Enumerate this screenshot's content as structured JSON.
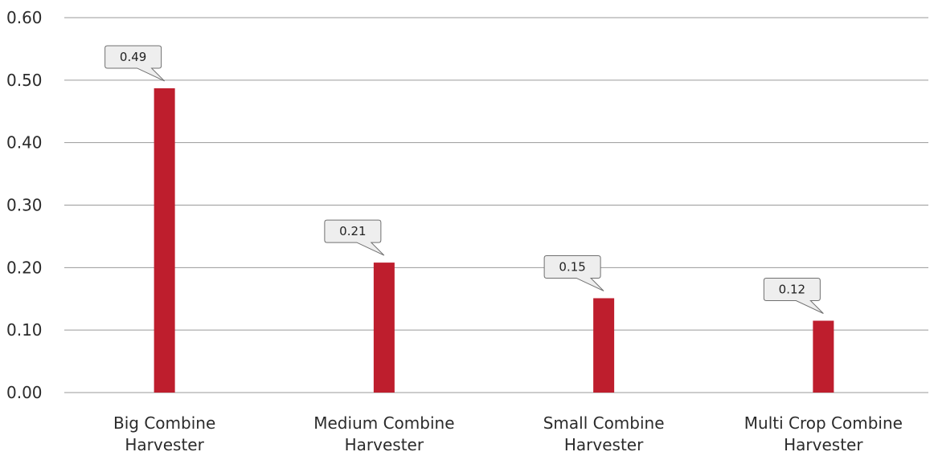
{
  "chart_data": {
    "type": "bar",
    "categories": [
      [
        "Big Combine",
        "Harvester"
      ],
      [
        "Medium Combine",
        "Harvester"
      ],
      [
        "Small Combine",
        "Harvester"
      ],
      [
        "Multi Crop Combine",
        "Harvester"
      ]
    ],
    "values": [
      0.487,
      0.208,
      0.151,
      0.115
    ],
    "data_labels": [
      "0.49",
      "0.21",
      "0.15",
      "0.12"
    ],
    "y_ticks": [
      "0.00",
      "0.10",
      "0.20",
      "0.30",
      "0.40",
      "0.50",
      "0.60"
    ],
    "ylim": [
      0,
      0.6
    ],
    "title": "",
    "xlabel": "",
    "ylabel": "",
    "grid": true,
    "legend": "none",
    "colors": {
      "bar": "#be1e2d",
      "gridline": "#9a9a9a",
      "callout_fill": "#eeeeee",
      "callout_border": "#707070"
    }
  }
}
